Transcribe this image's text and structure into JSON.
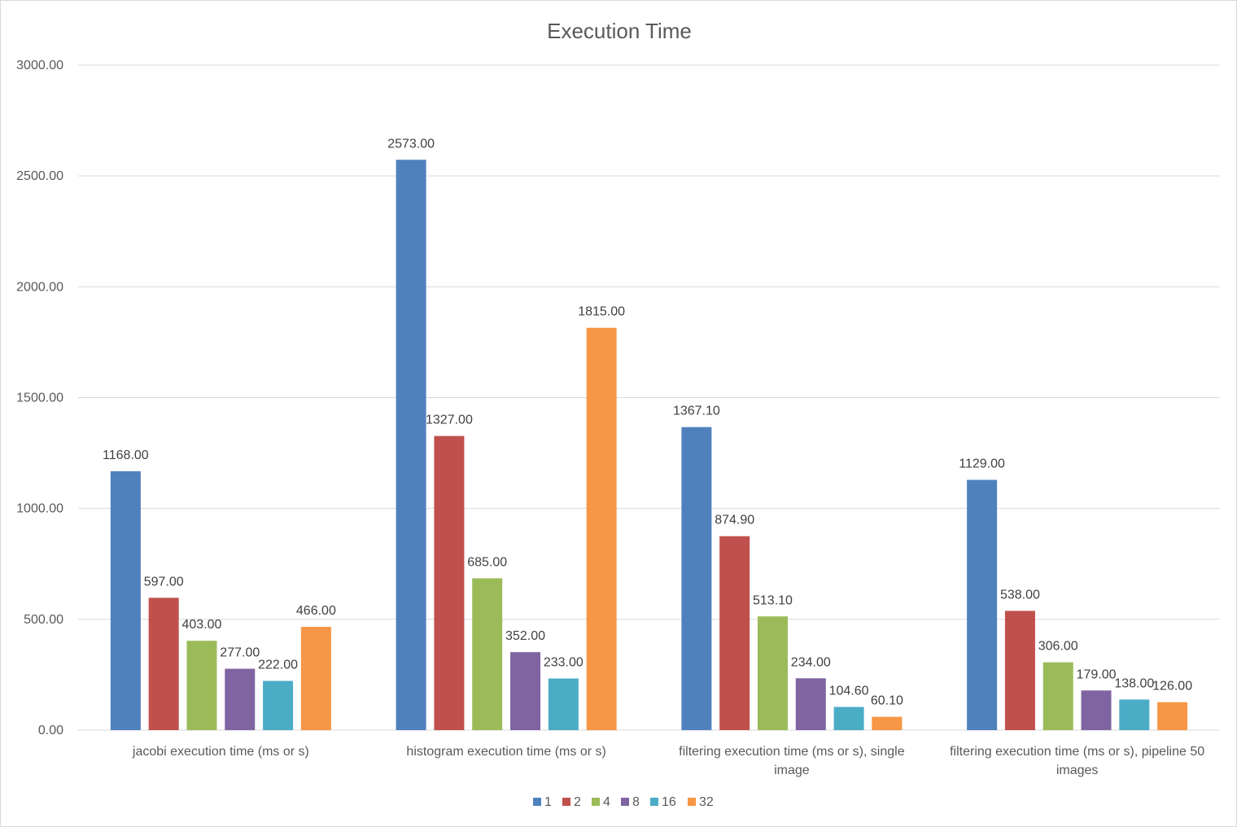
{
  "chart_data": {
    "type": "bar",
    "title": "Execution Time",
    "xlabel": "",
    "ylabel": "",
    "ylim": [
      0,
      3000
    ],
    "yticks": [
      "0.00",
      "500.00",
      "1000.00",
      "1500.00",
      "2000.00",
      "2500.00",
      "3000.00"
    ],
    "grid": true,
    "legend_position": "bottom",
    "categories": [
      [
        "jacobi execution time (ms or s)"
      ],
      [
        "histogram execution time (ms or s)"
      ],
      [
        "filtering execution time (ms or s), single",
        "image"
      ],
      [
        "filtering execution time (ms or s), pipeline 50",
        "images"
      ]
    ],
    "series": [
      {
        "name": "1",
        "color": "#4f81bd",
        "values": [
          1168.0,
          2573.0,
          1367.1,
          1129.0
        ],
        "labels": [
          "1168.00",
          "2573.00",
          "1367.10",
          "1129.00"
        ]
      },
      {
        "name": "2",
        "color": "#c0504d",
        "values": [
          597.0,
          1327.0,
          874.9,
          538.0
        ],
        "labels": [
          "597.00",
          "1327.00",
          "874.90",
          "538.00"
        ]
      },
      {
        "name": "4",
        "color": "#9bbb59",
        "values": [
          403.0,
          685.0,
          513.1,
          306.0
        ],
        "labels": [
          "403.00",
          "685.00",
          "513.10",
          "306.00"
        ]
      },
      {
        "name": "8",
        "color": "#8064a2",
        "values": [
          277.0,
          352.0,
          234.0,
          179.0
        ],
        "labels": [
          "277.00",
          "352.00",
          "234.00",
          "179.00"
        ]
      },
      {
        "name": "16",
        "color": "#4bacc6",
        "values": [
          222.0,
          233.0,
          104.6,
          138.0
        ],
        "labels": [
          "222.00",
          "233.00",
          "104.60",
          "138.00"
        ]
      },
      {
        "name": "32",
        "color": "#f79646",
        "values": [
          466.0,
          1815.0,
          60.1,
          126.0
        ],
        "labels": [
          "466.00",
          "1815.00",
          "60.10",
          "126.00"
        ]
      }
    ]
  }
}
